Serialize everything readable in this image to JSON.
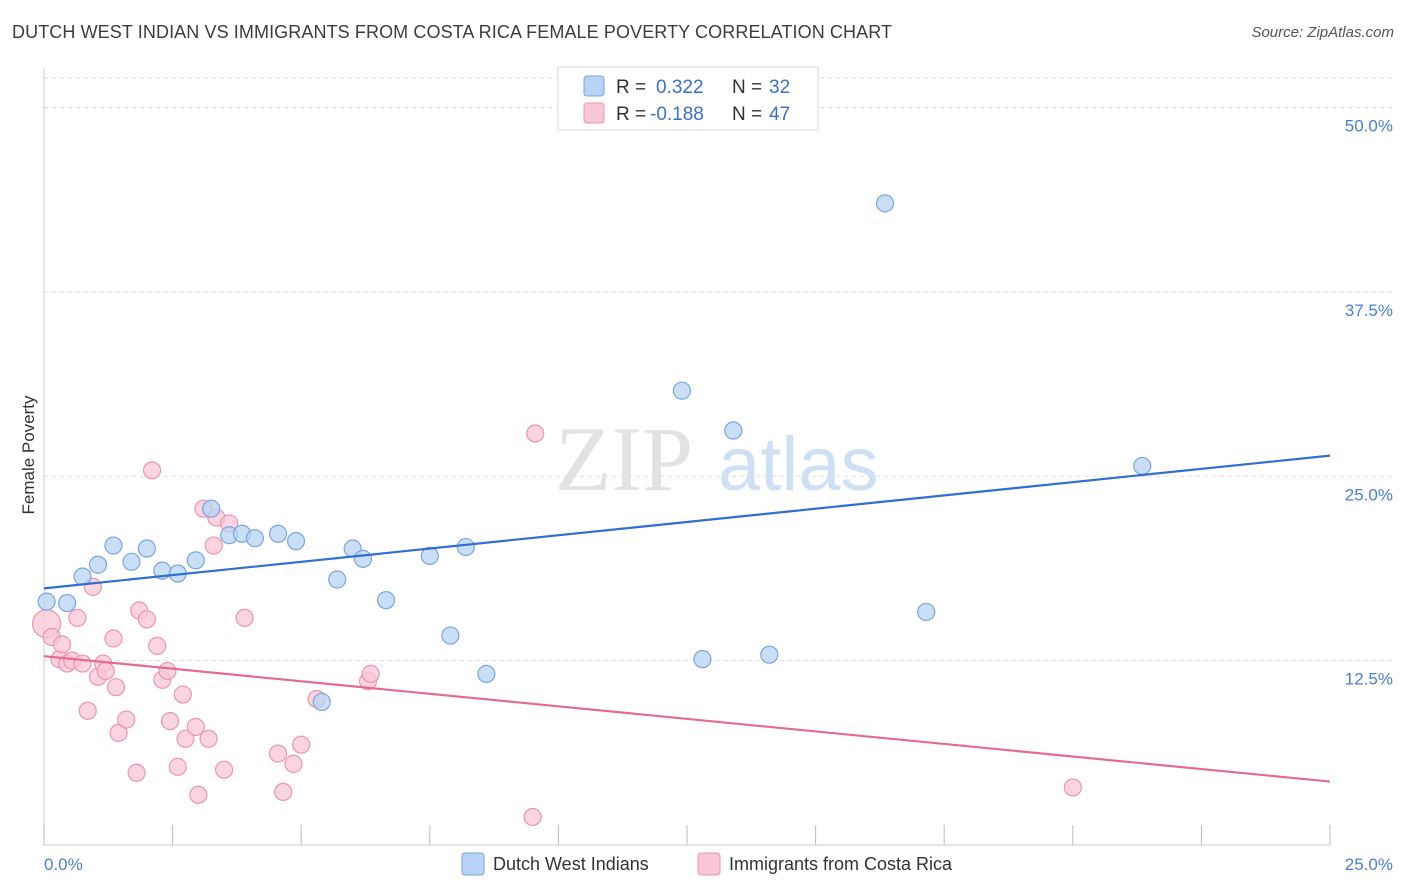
{
  "title": "DUTCH WEST INDIAN VS IMMIGRANTS FROM COSTA RICA FEMALE POVERTY CORRELATION CHART",
  "source": "Source: ZipAtlas.com",
  "watermark": {
    "zip": "ZIP",
    "atlas": "atlas"
  },
  "colors": {
    "blue_fill": "#b8d3f3",
    "blue_stroke": "#7aa6de",
    "blue_line": "#2e6fd0",
    "pink_fill": "#f8c7d5",
    "pink_stroke": "#ec95b0",
    "pink_line": "#e46a96",
    "tick_text": "#4a7fd0",
    "grid": "#dddddd"
  },
  "legend": {
    "rows": [
      {
        "r_label": "R =",
        "r_value": "0.322",
        "n_label": "N =",
        "n_value": "32"
      },
      {
        "r_label": "R =",
        "r_value": "-0.188",
        "n_label": "N =",
        "n_value": "47"
      }
    ]
  },
  "chart_data": {
    "type": "scatter",
    "title": "DUTCH WEST INDIAN VS IMMIGRANTS FROM COSTA RICA FEMALE POVERTY CORRELATION CHART",
    "xlabel": "",
    "ylabel": "Female Poverty",
    "xlim": [
      0,
      25
    ],
    "ylim": [
      0,
      52
    ],
    "x_tick_labels": [
      "0.0%",
      "25.0%"
    ],
    "y_ticks": [
      12.5,
      25.0,
      37.5,
      50.0
    ],
    "y_tick_labels": [
      "12.5%",
      "25.0%",
      "37.5%",
      "50.0%"
    ],
    "grid": true,
    "legend_position": "top-center",
    "series": [
      {
        "name": "Dutch West Indians",
        "color": "#b8d3f3",
        "trend": {
          "x": [
            0,
            25
          ],
          "y": [
            17.4,
            26.4
          ]
        },
        "points": [
          {
            "x": 0.05,
            "y": 16.5
          },
          {
            "x": 0.45,
            "y": 16.4
          },
          {
            "x": 0.75,
            "y": 18.2
          },
          {
            "x": 1.05,
            "y": 19.0
          },
          {
            "x": 1.35,
            "y": 20.3
          },
          {
            "x": 1.7,
            "y": 19.2
          },
          {
            "x": 2.0,
            "y": 20.1
          },
          {
            "x": 2.3,
            "y": 18.6
          },
          {
            "x": 2.6,
            "y": 18.4
          },
          {
            "x": 2.95,
            "y": 19.3
          },
          {
            "x": 3.25,
            "y": 22.8
          },
          {
            "x": 3.6,
            "y": 21.0
          },
          {
            "x": 3.85,
            "y": 21.1
          },
          {
            "x": 4.1,
            "y": 20.8
          },
          {
            "x": 4.55,
            "y": 21.1
          },
          {
            "x": 4.9,
            "y": 20.6
          },
          {
            "x": 5.4,
            "y": 9.7
          },
          {
            "x": 5.7,
            "y": 18.0
          },
          {
            "x": 6.0,
            "y": 20.1
          },
          {
            "x": 6.2,
            "y": 19.4
          },
          {
            "x": 6.65,
            "y": 16.6
          },
          {
            "x": 7.5,
            "y": 19.6
          },
          {
            "x": 7.9,
            "y": 14.2
          },
          {
            "x": 8.2,
            "y": 20.2
          },
          {
            "x": 8.6,
            "y": 11.6
          },
          {
            "x": 12.4,
            "y": 30.8
          },
          {
            "x": 12.8,
            "y": 12.6
          },
          {
            "x": 13.4,
            "y": 28.1
          },
          {
            "x": 14.1,
            "y": 12.9
          },
          {
            "x": 16.35,
            "y": 43.5
          },
          {
            "x": 17.15,
            "y": 15.8
          },
          {
            "x": 21.35,
            "y": 25.7
          }
        ]
      },
      {
        "name": "Immigrants from Costa Rica",
        "color": "#f8c7d5",
        "trend": {
          "x": [
            0,
            25
          ],
          "y": [
            12.8,
            4.3
          ]
        },
        "points": [
          {
            "x": 0.05,
            "y": 15.0
          },
          {
            "x": 0.15,
            "y": 14.1
          },
          {
            "x": 0.3,
            "y": 12.6
          },
          {
            "x": 0.35,
            "y": 13.6
          },
          {
            "x": 0.45,
            "y": 12.3
          },
          {
            "x": 0.55,
            "y": 12.5
          },
          {
            "x": 0.65,
            "y": 15.4
          },
          {
            "x": 0.75,
            "y": 12.3
          },
          {
            "x": 0.85,
            "y": 9.1
          },
          {
            "x": 0.95,
            "y": 17.5
          },
          {
            "x": 1.05,
            "y": 11.4
          },
          {
            "x": 1.15,
            "y": 12.3
          },
          {
            "x": 1.2,
            "y": 11.8
          },
          {
            "x": 1.35,
            "y": 14.0
          },
          {
            "x": 1.4,
            "y": 10.7
          },
          {
            "x": 1.45,
            "y": 7.6
          },
          {
            "x": 1.6,
            "y": 8.5
          },
          {
            "x": 1.8,
            "y": 4.9
          },
          {
            "x": 1.85,
            "y": 15.9
          },
          {
            "x": 2.0,
            "y": 15.3
          },
          {
            "x": 2.1,
            "y": 25.4
          },
          {
            "x": 2.2,
            "y": 13.5
          },
          {
            "x": 2.3,
            "y": 11.2
          },
          {
            "x": 2.4,
            "y": 11.8
          },
          {
            "x": 2.45,
            "y": 8.4
          },
          {
            "x": 2.6,
            "y": 5.3
          },
          {
            "x": 2.7,
            "y": 10.2
          },
          {
            "x": 2.75,
            "y": 7.2
          },
          {
            "x": 2.95,
            "y": 8.0
          },
          {
            "x": 3.0,
            "y": 3.4
          },
          {
            "x": 3.1,
            "y": 22.8
          },
          {
            "x": 3.2,
            "y": 7.2
          },
          {
            "x": 3.3,
            "y": 20.3
          },
          {
            "x": 3.35,
            "y": 22.2
          },
          {
            "x": 3.5,
            "y": 5.1
          },
          {
            "x": 3.6,
            "y": 21.8
          },
          {
            "x": 3.9,
            "y": 15.4
          },
          {
            "x": 4.55,
            "y": 6.2
          },
          {
            "x": 4.65,
            "y": 3.6
          },
          {
            "x": 4.85,
            "y": 5.5
          },
          {
            "x": 5.3,
            "y": 9.9
          },
          {
            "x": 5.0,
            "y": 6.8
          },
          {
            "x": 6.3,
            "y": 11.1
          },
          {
            "x": 6.35,
            "y": 11.6
          },
          {
            "x": 9.55,
            "y": 27.9
          },
          {
            "x": 9.5,
            "y": 1.9
          },
          {
            "x": 20.0,
            "y": 3.9
          }
        ]
      }
    ]
  }
}
